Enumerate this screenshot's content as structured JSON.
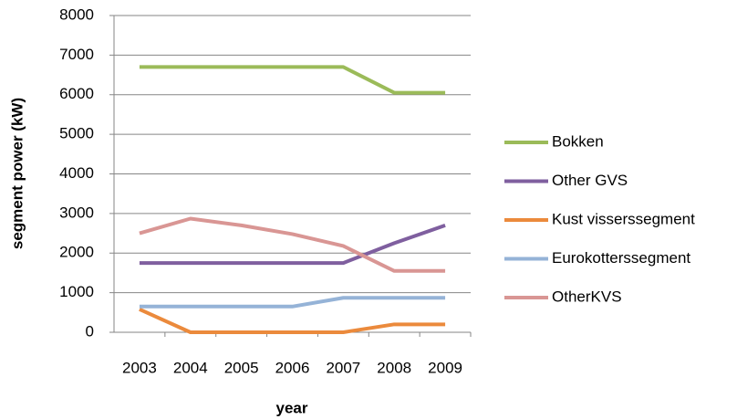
{
  "chart_data": {
    "type": "line",
    "x_label": "year",
    "y_label": "segment power (kW)",
    "categories": [
      "2003",
      "2004",
      "2005",
      "2006",
      "2007",
      "2008",
      "2009"
    ],
    "series": [
      {
        "name": "Bokken",
        "color": "#9BBB59",
        "values": [
          6700,
          6700,
          6700,
          6700,
          6700,
          6050,
          6050
        ]
      },
      {
        "name": "Other GVS",
        "color": "#7F5F9F",
        "values": [
          1750,
          1750,
          1750,
          1750,
          1750,
          2250,
          2700
        ]
      },
      {
        "name": "Kust visserssegment",
        "color": "#EB8A3C",
        "values": [
          580,
          0,
          0,
          0,
          0,
          200,
          200
        ]
      },
      {
        "name": "Eurokotterssegment",
        "color": "#95B3D7",
        "values": [
          650,
          650,
          650,
          650,
          870,
          870,
          870
        ]
      },
      {
        "name": "OtherKVS",
        "color": "#D99694",
        "values": [
          2500,
          2870,
          2700,
          2480,
          2180,
          1550,
          1550
        ]
      }
    ],
    "ylim": [
      0,
      8000
    ],
    "yticks": [
      0,
      1000,
      2000,
      3000,
      4000,
      5000,
      6000,
      7000,
      8000
    ],
    "grid": true,
    "legend": "right"
  }
}
